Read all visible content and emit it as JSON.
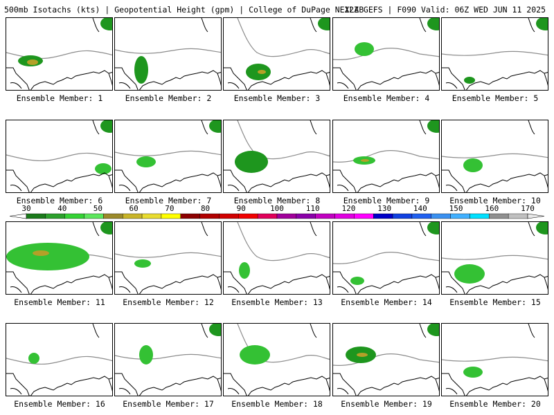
{
  "header": {
    "title_left": "500mb Isotachs (kts) | Geopotential Height (gpm) | College of DuPage NEXLAB",
    "title_right": "12Z GEFS | F090 Valid: 06Z WED JUN 11 2025"
  },
  "panels": [
    {
      "label": "Ensemble Member: 1"
    },
    {
      "label": "Ensemble Member: 2"
    },
    {
      "label": "Ensemble Member: 3"
    },
    {
      "label": "Ensemble Member: 4"
    },
    {
      "label": "Ensemble Member: 5"
    },
    {
      "label": "Ensemble Member: 6"
    },
    {
      "label": "Ensemble Member: 7"
    },
    {
      "label": "Ensemble Member: 8"
    },
    {
      "label": "Ensemble Member: 9"
    },
    {
      "label": "Ensemble Member: 10"
    },
    {
      "label": "Ensemble Member: 11"
    },
    {
      "label": "Ensemble Member: 12"
    },
    {
      "label": "Ensemble Member: 13"
    },
    {
      "label": "Ensemble Member: 14"
    },
    {
      "label": "Ensemble Member: 15"
    },
    {
      "label": "Ensemble Member: 16"
    },
    {
      "label": "Ensemble Member: 17"
    },
    {
      "label": "Ensemble Member: 18"
    },
    {
      "label": "Ensemble Member: 19"
    },
    {
      "label": "Ensemble Member: 20"
    }
  ],
  "colorbar": {
    "labels": [
      "30",
      "40",
      "50",
      "60",
      "70",
      "80",
      "90",
      "100",
      "110",
      "120",
      "130",
      "140",
      "150",
      "160",
      "170"
    ],
    "colors": [
      "#1b7a1b",
      "#2ca02c",
      "#34d234",
      "#5ce65c",
      "#9b8a2a",
      "#c8b428",
      "#e8dc30",
      "#ffff00",
      "#8b0000",
      "#b00000",
      "#d00000",
      "#f00000",
      "#e0005a",
      "#a0009a",
      "#8a00a8",
      "#c000c0",
      "#e000e0",
      "#ff00ff",
      "#0000c8",
      "#1040e0",
      "#2060f0",
      "#3a90f0",
      "#40b0ff",
      "#00e0ff",
      "#909090",
      "#c0c0c0"
    ]
  },
  "map_colors": {
    "coast": "#000000",
    "height_contour": "#8c8c8c",
    "isotach_light": "#34c134",
    "isotach_mid": "#1e961e",
    "isotach_dark": "#0f6e0f",
    "isotach_high": "#b4a028"
  }
}
